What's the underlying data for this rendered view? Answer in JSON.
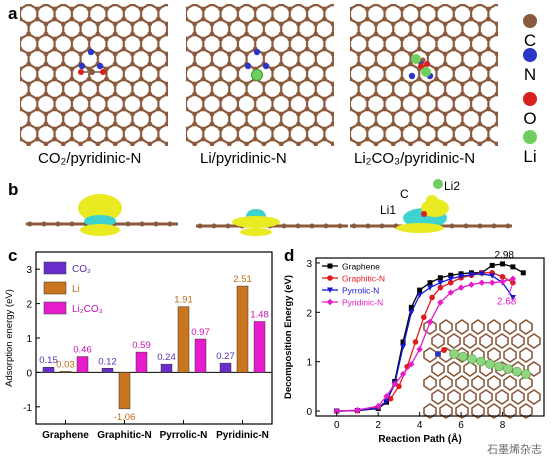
{
  "panel_letters": {
    "a": "a",
    "b": "b",
    "c": "c",
    "d": "d"
  },
  "panel_a": {
    "captions": [
      "CO₂/pyridinic-N",
      "Li/pyridinic-N",
      "Li₂CO₃/pyridinic-N"
    ],
    "legend": [
      {
        "label": "C",
        "color": "#8b5a3c"
      },
      {
        "label": "N",
        "color": "#2a36c8"
      },
      {
        "label": "O",
        "color": "#d8221f"
      },
      {
        "label": "Li",
        "color": "#6fcf5d"
      }
    ]
  },
  "panel_b": {
    "labels": {
      "c": "C",
      "li1": "Li1",
      "li2": "Li2"
    }
  },
  "chart_data": [
    {
      "type": "bar",
      "ylabel": "Adsorption energy (eV)",
      "ylim": [
        -1.5,
        3.5
      ],
      "yticks": [
        -1,
        0,
        1,
        2,
        3
      ],
      "categories": [
        "Graphene",
        "Graphitic-N",
        "Pyrrolic-N",
        "Pyridinic-N"
      ],
      "series": [
        {
          "name": "CO₂",
          "values": [
            0.15,
            0.12,
            0.24,
            0.27
          ],
          "labels": [
            "0.15",
            "0.12",
            "0.24",
            "0.27"
          ],
          "color": "#6a2dcc",
          "label_color": "#5a2fb0"
        },
        {
          "name": "Li",
          "values": [
            0.03,
            -1.06,
            1.91,
            2.51
          ],
          "labels": [
            "0.03",
            "-1.06",
            "1.91",
            "2.51"
          ],
          "color": "#c9761f",
          "label_color": "#c06a12"
        },
        {
          "name": "Li₂CO₃",
          "values": [
            0.46,
            0.59,
            0.97,
            1.48
          ],
          "labels": [
            "0.46",
            "0.59",
            "0.97",
            "1.48"
          ],
          "color": "#e61ccc",
          "label_color": "#c814b2"
        }
      ],
      "legend_position": "top-left"
    },
    {
      "type": "line",
      "xlabel": "Reaction Path (Å)",
      "ylabel": "Decomposition Energy (eV)",
      "xlim": [
        -1,
        10
      ],
      "ylim": [
        -0.1,
        3.1
      ],
      "xticks": [
        0,
        2,
        4,
        6,
        8
      ],
      "yticks": [
        0,
        1,
        2,
        3
      ],
      "series": [
        {
          "name": "Graphene",
          "color": "#000000",
          "marker": "square",
          "x": [
            0,
            1,
            2,
            2.4,
            2.8,
            3.2,
            3.6,
            4.0,
            4.5,
            5.0,
            5.5,
            6.0,
            6.5,
            7.0,
            7.5,
            8.0,
            8.5,
            9.0
          ],
          "y": [
            0,
            0.01,
            0.05,
            0.18,
            0.6,
            1.4,
            2.1,
            2.45,
            2.6,
            2.7,
            2.75,
            2.78,
            2.8,
            2.8,
            2.95,
            2.98,
            2.92,
            2.8
          ]
        },
        {
          "name": "Graphitic-N",
          "color": "#e31a1c",
          "marker": "circle",
          "x": [
            0,
            1,
            2,
            2.6,
            3.0,
            3.4,
            3.8,
            4.2,
            4.6,
            5.0,
            5.5,
            6.0,
            6.5,
            7.0,
            7.5,
            8.0,
            8.5
          ],
          "y": [
            0,
            0.01,
            0.08,
            0.25,
            0.5,
            0.9,
            1.4,
            1.9,
            2.3,
            2.5,
            2.6,
            2.7,
            2.75,
            2.8,
            2.8,
            2.72,
            2.6
          ]
        },
        {
          "name": "Pyrrolic-N",
          "color": "#1515d6",
          "marker": "triangle-down",
          "x": [
            0,
            1,
            2,
            2.4,
            2.8,
            3.2,
            3.6,
            4.0,
            4.5,
            5.0,
            5.5,
            6.0,
            6.5,
            7.0,
            7.5,
            8.0,
            8.5
          ],
          "y": [
            0,
            0.01,
            0.06,
            0.2,
            0.55,
            1.3,
            2.0,
            2.35,
            2.5,
            2.6,
            2.68,
            2.73,
            2.76,
            2.78,
            2.74,
            2.6,
            2.3
          ]
        },
        {
          "name": "Pyridinic-N",
          "color": "#e61ccc",
          "marker": "diamond",
          "x": [
            0,
            1,
            2,
            2.4,
            2.8,
            3.2,
            3.6,
            4.0,
            4.5,
            5.0,
            5.5,
            6.0,
            6.5,
            7.0,
            7.5,
            8.0,
            8.5
          ],
          "y": [
            0,
            0.02,
            0.1,
            0.3,
            0.55,
            0.75,
            0.95,
            1.25,
            1.8,
            2.2,
            2.4,
            2.5,
            2.56,
            2.6,
            2.6,
            2.62,
            2.68
          ]
        }
      ],
      "annotations": [
        {
          "text": "2.98",
          "color": "#000000"
        },
        {
          "text": "2.68",
          "color": "#e61ccc"
        }
      ],
      "legend_position": "top-left"
    }
  ],
  "watermark": "石墨烯杂志"
}
